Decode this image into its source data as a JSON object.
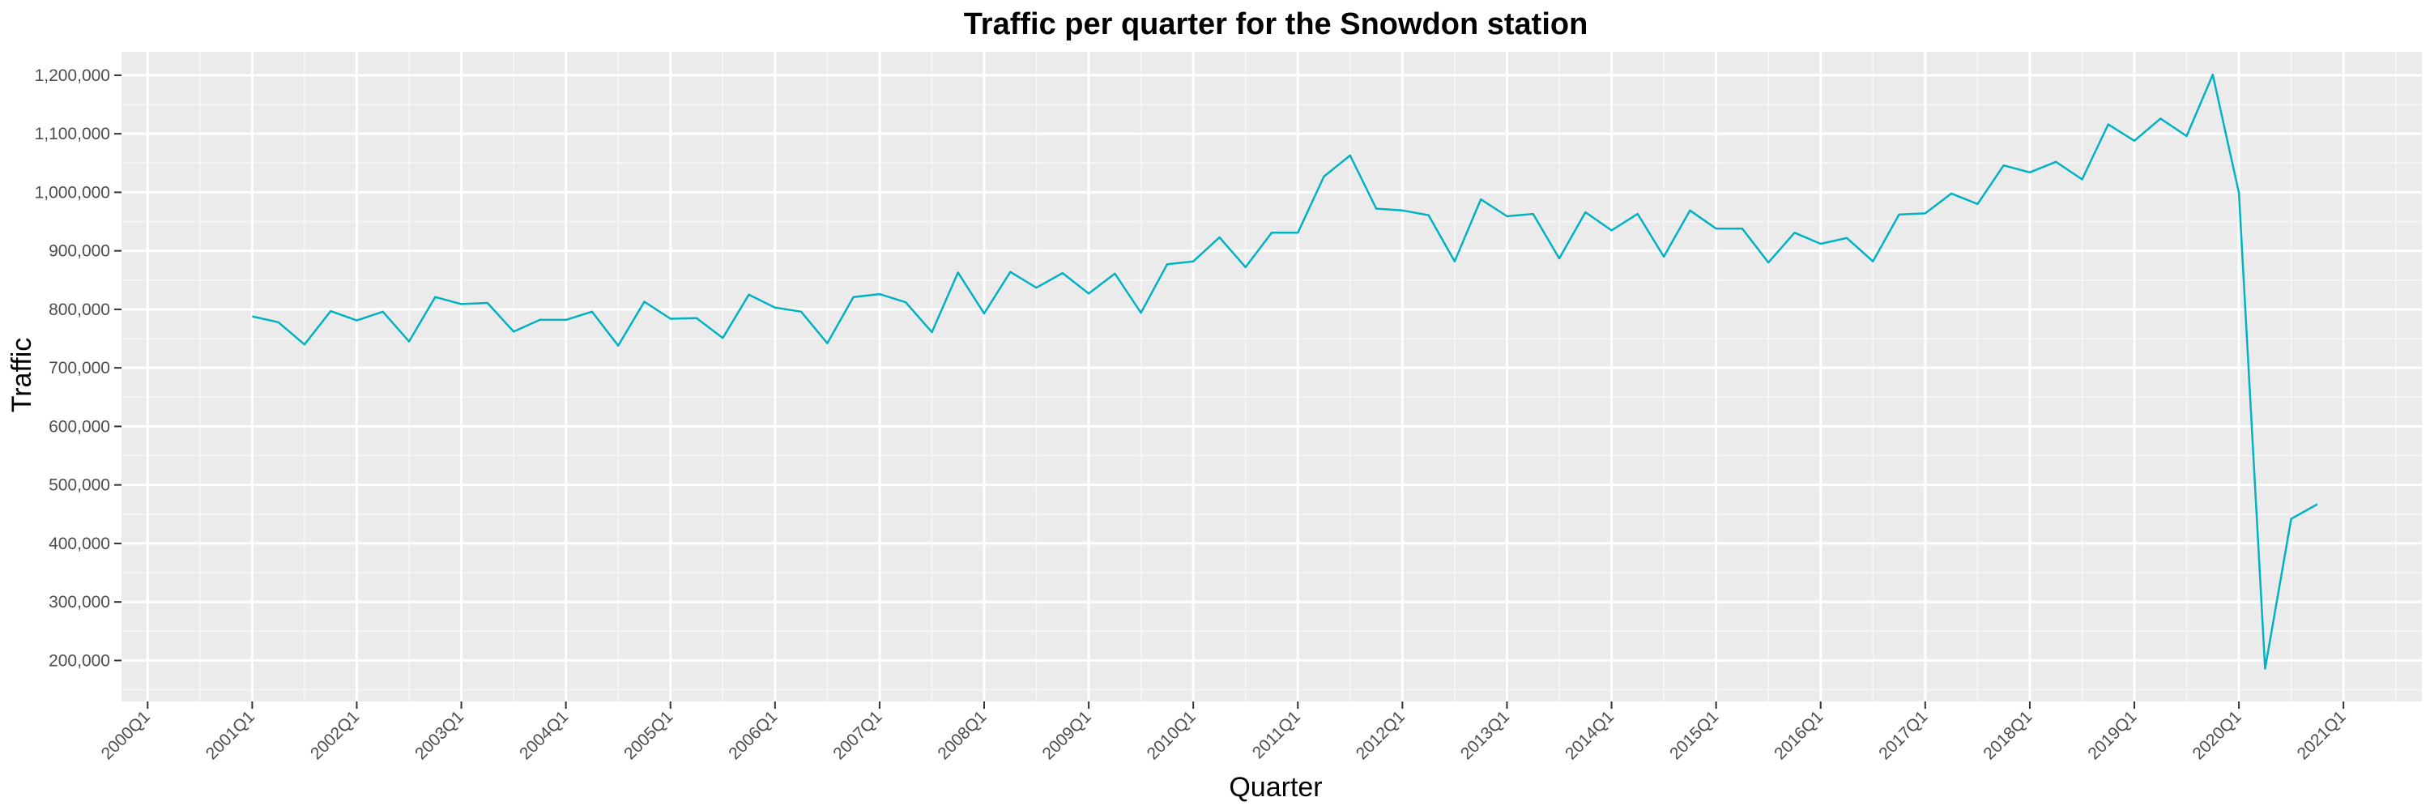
{
  "chart_data": {
    "type": "line",
    "title": "Traffic per quarter for the Snowdon station",
    "xlabel": "Quarter",
    "ylabel": "Traffic",
    "grid": true,
    "background_color": "#ebebeb",
    "line_color": "#00b2c2",
    "x_ticks": [
      "2000Q1",
      "2001Q1",
      "2002Q1",
      "2003Q1",
      "2004Q1",
      "2005Q1",
      "2006Q1",
      "2007Q1",
      "2008Q1",
      "2009Q1",
      "2010Q1",
      "2011Q1",
      "2012Q1",
      "2013Q1",
      "2014Q1",
      "2015Q1",
      "2016Q1",
      "2017Q1",
      "2018Q1",
      "2019Q1",
      "2020Q1",
      "2021Q1"
    ],
    "y_ticks": [
      "200,000",
      "300,000",
      "400,000",
      "500,000",
      "600,000",
      "700,000",
      "800,000",
      "900,000",
      "1,000,000",
      "1,100,000",
      "1,200,000"
    ],
    "ylim": [
      130000,
      1240000
    ],
    "x_range": [
      "1999Q4",
      "2021Q4"
    ],
    "series": [
      {
        "x": [
          "2001Q1",
          "2001Q2",
          "2001Q3",
          "2001Q4",
          "2002Q1",
          "2002Q2",
          "2002Q3",
          "2002Q4",
          "2003Q1",
          "2003Q2",
          "2003Q3",
          "2003Q4",
          "2004Q1",
          "2004Q2",
          "2004Q3",
          "2004Q4",
          "2005Q1",
          "2005Q2",
          "2005Q3",
          "2005Q4",
          "2006Q1",
          "2006Q2",
          "2006Q3",
          "2006Q4",
          "2007Q1",
          "2007Q2",
          "2007Q3",
          "2007Q4",
          "2008Q1",
          "2008Q2",
          "2008Q3",
          "2008Q4",
          "2009Q1",
          "2009Q2",
          "2009Q3",
          "2009Q4",
          "2010Q1",
          "2010Q2",
          "2010Q3",
          "2010Q4",
          "2011Q1",
          "2011Q2",
          "2011Q3",
          "2011Q4",
          "2012Q1",
          "2012Q2",
          "2012Q3",
          "2012Q4",
          "2013Q1",
          "2013Q2",
          "2013Q3",
          "2013Q4",
          "2014Q1",
          "2014Q2",
          "2014Q3",
          "2014Q4",
          "2015Q1",
          "2015Q2",
          "2015Q3",
          "2015Q4",
          "2016Q1",
          "2016Q2",
          "2016Q3",
          "2016Q4",
          "2017Q1",
          "2017Q2",
          "2017Q3",
          "2017Q4",
          "2018Q1",
          "2018Q2",
          "2018Q3",
          "2018Q4",
          "2019Q1",
          "2019Q2",
          "2019Q3",
          "2019Q4",
          "2020Q1",
          "2020Q2",
          "2020Q3",
          "2020Q4"
        ],
        "values": [
          788000,
          778000,
          740000,
          797000,
          781000,
          796000,
          745000,
          821000,
          809000,
          811000,
          762000,
          782000,
          782000,
          796000,
          738000,
          813000,
          784000,
          785000,
          751000,
          825000,
          803000,
          796000,
          742000,
          821000,
          826000,
          812000,
          761000,
          863000,
          793000,
          864000,
          837000,
          862000,
          827000,
          861000,
          794000,
          877000,
          882000,
          923000,
          872000,
          931000,
          931000,
          1027000,
          1063000,
          972000,
          969000,
          961000,
          882000,
          988000,
          959000,
          963000,
          887000,
          966000,
          935000,
          963000,
          890000,
          969000,
          938000,
          938000,
          880000,
          931000,
          912000,
          922000,
          882000,
          962000,
          964000,
          998000,
          980000,
          1046000,
          1034000,
          1052000,
          1022000,
          1116000,
          1088000,
          1126000,
          1096000,
          1201000,
          999000,
          186000,
          442000,
          467000
        ]
      }
    ]
  }
}
